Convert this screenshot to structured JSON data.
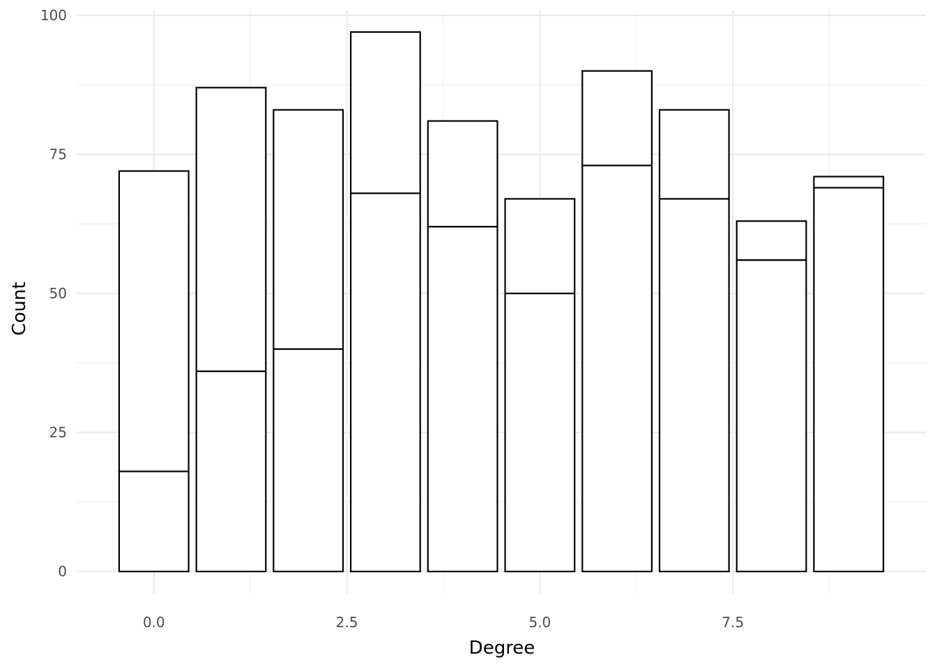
{
  "chart_data": {
    "type": "bar",
    "stacked": true,
    "title": "",
    "xlabel": "Degree",
    "ylabel": "Count",
    "x": [
      0,
      1,
      2,
      3,
      4,
      5,
      6,
      7,
      8,
      9
    ],
    "series": [
      {
        "values": [
          18,
          36,
          40,
          68,
          62,
          50,
          73,
          67,
          56,
          69
        ]
      },
      {
        "values": [
          54,
          51,
          43,
          29,
          19,
          17,
          17,
          16,
          7,
          2
        ]
      }
    ],
    "totals": [
      72,
      87,
      83,
      97,
      81,
      67,
      90,
      83,
      63,
      71
    ],
    "xlim": [
      -1,
      10
    ],
    "ylim": [
      -4,
      101
    ],
    "x_ticks": [
      0.0,
      2.5,
      5.0,
      7.5
    ],
    "x_tick_labels": [
      "0.0",
      "2.5",
      "5.0",
      "7.5"
    ],
    "y_ticks": [
      0,
      25,
      50,
      75,
      100
    ],
    "y_tick_labels": [
      "0",
      "25",
      "50",
      "75",
      "100"
    ],
    "grid": true,
    "fill_color": "#ffffff",
    "outline_color": "#000000"
  }
}
